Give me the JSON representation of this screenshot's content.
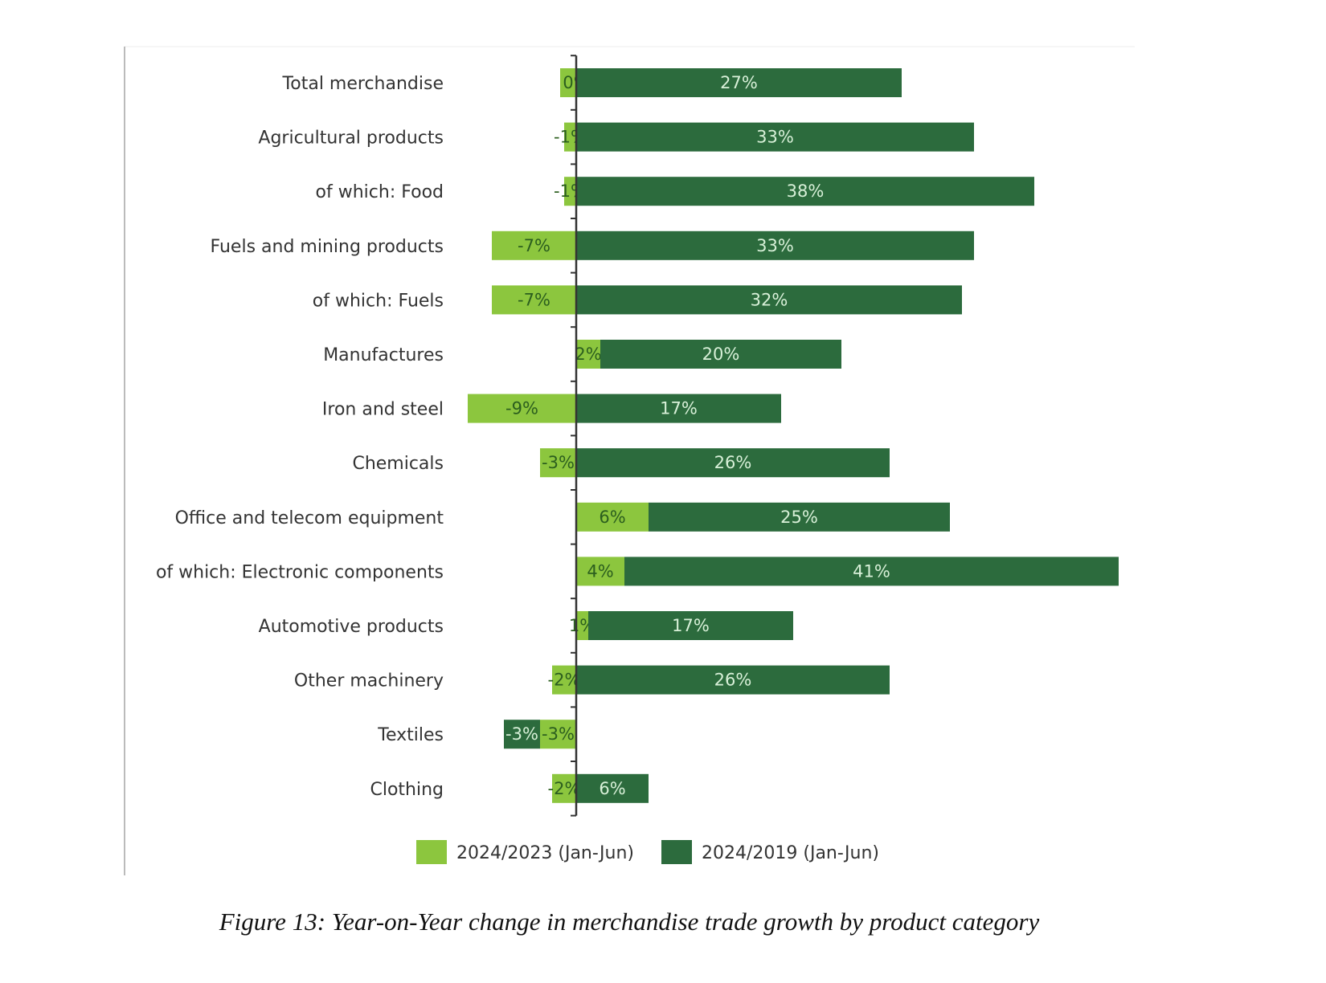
{
  "chart_data": {
    "type": "bar",
    "orientation": "horizontal",
    "stacked": true,
    "categories": [
      "Total merchandise",
      "Agricultural products",
      "of which: Food",
      "Fuels and mining products",
      "of which: Fuels",
      "Manufactures",
      "Iron and steel",
      "Chemicals",
      "Office and telecom equipment",
      "of which: Electronic components",
      "Automotive products",
      "Other machinery",
      "Textiles",
      "Clothing"
    ],
    "series": [
      {
        "name": "2024/2023 (Jan-Jun)",
        "color": "#8cc63e",
        "label_color": "#2b5e1e",
        "values": [
          0,
          -1,
          -1,
          -7,
          -7,
          2,
          -9,
          -3,
          6,
          4,
          1,
          -2,
          -3,
          -2
        ]
      },
      {
        "name": "2024/2019 (Jan-Jun)",
        "color": "#2c6b3d",
        "label_color": "#d8f0d8",
        "values": [
          27,
          33,
          38,
          33,
          32,
          20,
          17,
          26,
          25,
          41,
          17,
          26,
          -3,
          6
        ]
      }
    ],
    "value_suffix": "%",
    "legend": "bottom",
    "grid": false
  },
  "caption": "Figure 13: Year-on-Year change in merchandise trade growth by product category"
}
